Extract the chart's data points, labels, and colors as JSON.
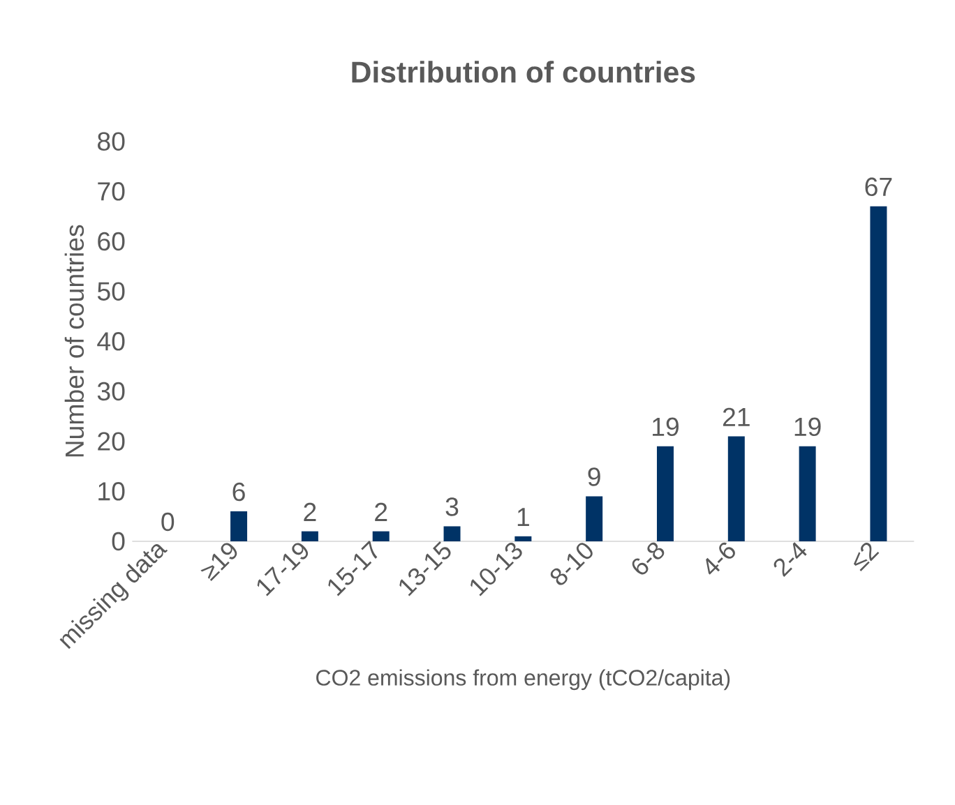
{
  "chart_data": {
    "type": "bar",
    "title": "Distribution of countries",
    "xlabel": "CO2 emissions from energy (tCO2/capita)",
    "ylabel": "Number of countries",
    "categories": [
      "missing data",
      "≥19",
      "17-19",
      "15-17",
      "13-15",
      "10-13",
      "8-10",
      "6-8",
      "4-6",
      "2-4",
      "≤2"
    ],
    "values": [
      0,
      6,
      2,
      2,
      3,
      1,
      9,
      19,
      21,
      19,
      67
    ],
    "color": "#003366",
    "ylim": [
      0,
      80
    ],
    "yticks": [
      0,
      10,
      20,
      30,
      40,
      50,
      60,
      70,
      80
    ],
    "data_labels": true
  }
}
